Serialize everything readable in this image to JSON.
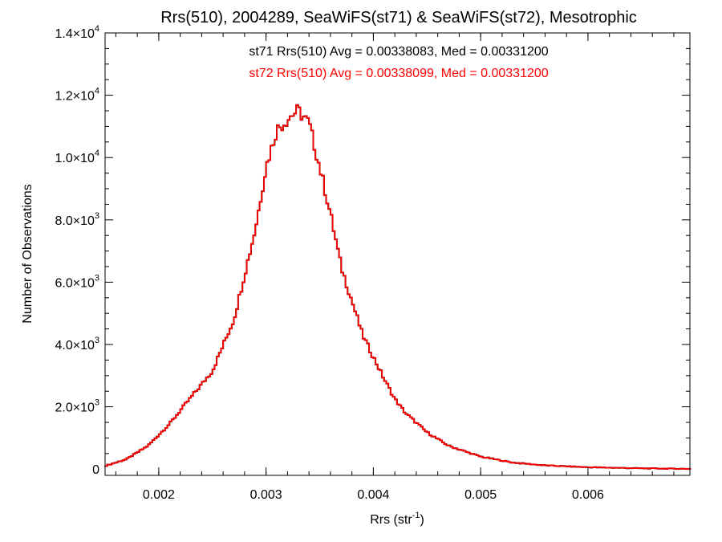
{
  "chart_data": {
    "type": "histogram",
    "title": "Rrs(510), 2004289, SeaWiFS(st71) & SeaWiFS(st72), Mesotrophic",
    "xlabel": {
      "text": "Rrs (str",
      "sup": "-1",
      "suffix": ")"
    },
    "ylabel": "Number of Observations",
    "xlim": [
      0.0015,
      0.00695
    ],
    "ylim": [
      -200,
      14000
    ],
    "x_ticks": [
      {
        "value": 0.002,
        "label": "0.002"
      },
      {
        "value": 0.003,
        "label": "0.003"
      },
      {
        "value": 0.004,
        "label": "0.004"
      },
      {
        "value": 0.005,
        "label": "0.005"
      },
      {
        "value": 0.006,
        "label": "0.006"
      }
    ],
    "y_ticks": [
      {
        "value": 0,
        "mant": "0",
        "exp": ""
      },
      {
        "value": 2000,
        "mant": "2.0×10",
        "exp": "3"
      },
      {
        "value": 4000,
        "mant": "4.0×10",
        "exp": "3"
      },
      {
        "value": 6000,
        "mant": "6.0×10",
        "exp": "3"
      },
      {
        "value": 8000,
        "mant": "8.0×10",
        "exp": "3"
      },
      {
        "value": 10000,
        "mant": "1.0×10",
        "exp": "4"
      },
      {
        "value": 12000,
        "mant": "1.2×10",
        "exp": "4"
      },
      {
        "value": 14000,
        "mant": "1.4×10",
        "exp": "4"
      }
    ],
    "annotations": [
      {
        "text": "st71 Rrs(510) Avg = 0.00338083, Med = 0.00331200",
        "color": "#000000"
      },
      {
        "text": "st72 Rrs(510) Avg = 0.00338099, Med = 0.00331200",
        "color": "#ff0000"
      }
    ],
    "series": [
      {
        "name": "st71",
        "color": "#000000"
      },
      {
        "name": "st72",
        "color": "#ff0000"
      }
    ],
    "bin_width": 2e-05,
    "profile_points": [
      [
        0.0015,
        100
      ],
      [
        0.0017,
        320
      ],
      [
        0.0019,
        750
      ],
      [
        0.0021,
        1450
      ],
      [
        0.0023,
        2300
      ],
      [
        0.0025,
        3150
      ],
      [
        0.0027,
        4800
      ],
      [
        0.0029,
        7700
      ],
      [
        0.003,
        9700
      ],
      [
        0.0031,
        10900
      ],
      [
        0.00325,
        11400
      ],
      [
        0.0033,
        11500
      ],
      [
        0.0034,
        11100
      ],
      [
        0.0035,
        9700
      ],
      [
        0.0036,
        8200
      ],
      [
        0.0037,
        6500
      ],
      [
        0.0038,
        5400
      ],
      [
        0.0039,
        4300
      ],
      [
        0.004,
        3600
      ],
      [
        0.0041,
        2900
      ],
      [
        0.0042,
        2250
      ],
      [
        0.0043,
        1800
      ],
      [
        0.0045,
        1180
      ],
      [
        0.0047,
        750
      ],
      [
        0.005,
        400
      ],
      [
        0.0053,
        210
      ],
      [
        0.0056,
        120
      ],
      [
        0.006,
        60
      ],
      [
        0.0065,
        25
      ],
      [
        0.00695,
        8
      ]
    ]
  }
}
